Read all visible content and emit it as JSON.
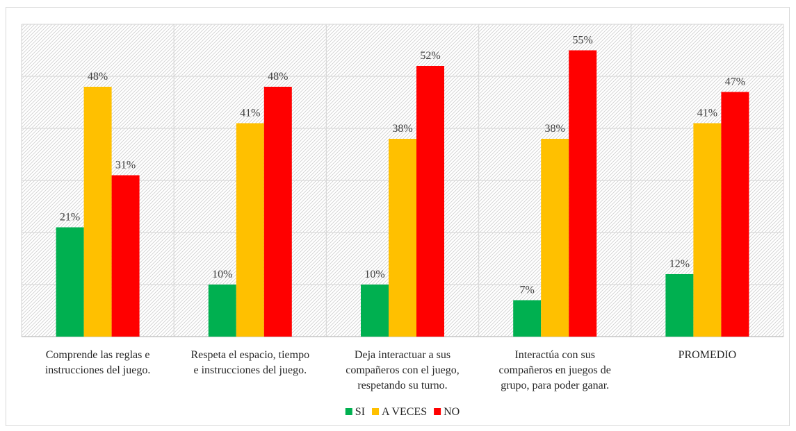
{
  "chart_data": {
    "type": "bar",
    "categories": [
      [
        "Comprende las reglas e",
        "instrucciones del juego."
      ],
      [
        "Respeta el espacio, tiempo",
        "e instrucciones del juego."
      ],
      [
        "Deja interactuar a sus",
        "compañeros con el juego,",
        "respetando su turno."
      ],
      [
        "Interactúa con sus",
        "compañeros en juegos de",
        "grupo, para poder ganar."
      ],
      [
        "PROMEDIO"
      ]
    ],
    "series": [
      {
        "name": "SI",
        "color": "#00b050",
        "values": [
          21,
          10,
          10,
          7,
          12
        ],
        "labels": [
          "21%",
          "10%",
          "10%",
          "7%",
          "12%"
        ]
      },
      {
        "name": "A VECES",
        "color": "#ffc000",
        "values": [
          48,
          41,
          38,
          38,
          41
        ],
        "labels": [
          "48%",
          "41%",
          "38%",
          "38%",
          "41%"
        ]
      },
      {
        "name": "NO",
        "color": "#ff0000",
        "values": [
          31,
          48,
          52,
          55,
          47
        ],
        "labels": [
          "31%",
          "48%",
          "52%",
          "55%",
          "47%"
        ]
      }
    ],
    "ylim": [
      0,
      60
    ],
    "gridlines": [
      0,
      10,
      20,
      30,
      40,
      50,
      60
    ],
    "grid": true,
    "background_pattern": "diagonal-hatch",
    "legend_position": "bottom"
  }
}
